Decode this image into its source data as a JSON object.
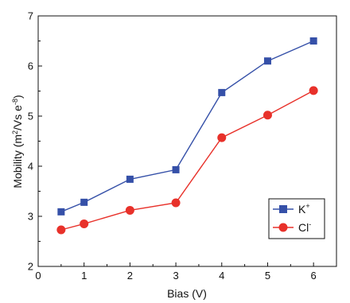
{
  "chart_data": {
    "type": "line",
    "title": "",
    "xlabel": "Bias (V)",
    "ylabel_parts": {
      "pre": "Mobility (m",
      "sup1": "2",
      "mid": "/Vs e",
      "sup2": "-8",
      "post": ")"
    },
    "xlim": [
      0,
      6.5
    ],
    "ylim": [
      2,
      7
    ],
    "x_ticks": [
      0,
      1,
      2,
      3,
      4,
      5,
      6
    ],
    "y_ticks": [
      2,
      3,
      4,
      5,
      6,
      7
    ],
    "grid": false,
    "legend_position": "lower-right",
    "series": [
      {
        "name_base": "K",
        "name_sup": "+",
        "marker": "square",
        "color": "#3550a8",
        "x": [
          0.5,
          1,
          2,
          3,
          4,
          5,
          6
        ],
        "y": [
          3.09,
          3.28,
          3.74,
          3.93,
          5.47,
          6.1,
          6.5
        ]
      },
      {
        "name_base": "Cl",
        "name_sup": "-",
        "marker": "circle",
        "color": "#e8312a",
        "x": [
          0.5,
          1,
          2,
          3,
          4,
          5,
          6
        ],
        "y": [
          2.73,
          2.85,
          3.12,
          3.27,
          4.57,
          5.02,
          5.51
        ]
      }
    ]
  }
}
